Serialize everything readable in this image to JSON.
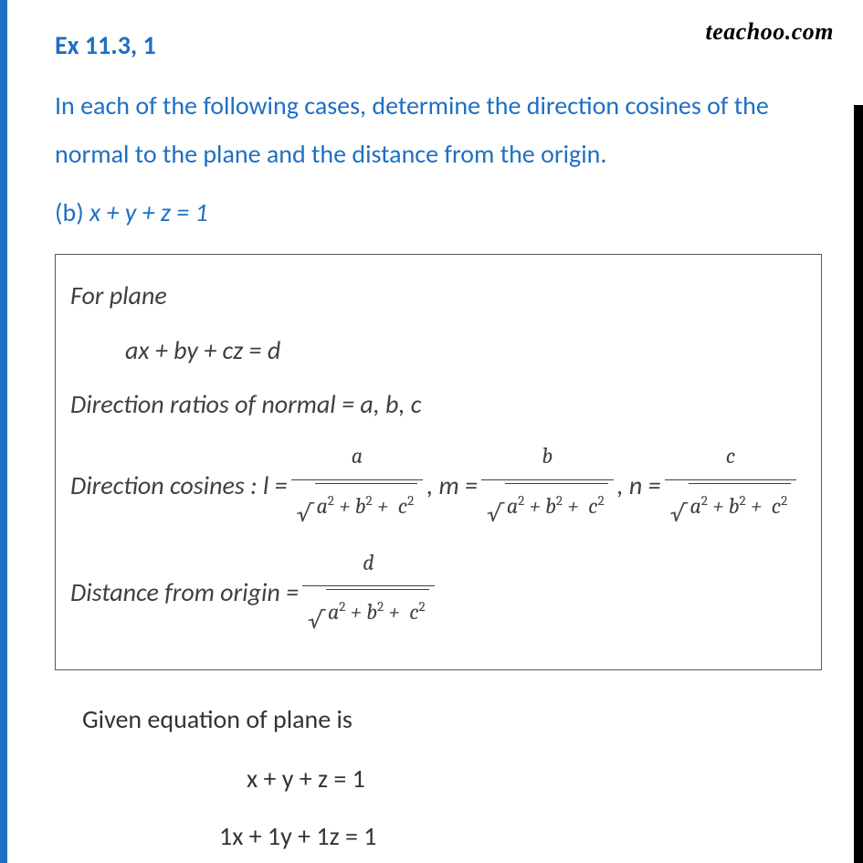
{
  "watermark": "teachoo.com",
  "heading": "Ex 11.3, 1",
  "question": "In each of the following cases, determine the direction cosines of the normal to the plane and the distance from the origin.",
  "part_label": "(b) ",
  "part_equation": "x + y + z = 1",
  "box": {
    "for_plane": "For plane",
    "general_eq": "ax + by + cz = d",
    "dr_label": "Direction ratios of normal = a, b, c",
    "dc_label": "Direction cosines : l = ",
    "m_label": " ,  m = ",
    "n_label": " ,  n = ",
    "a": "a",
    "b": "b",
    "c": "c",
    "d": "d",
    "denom_a": "a",
    "denom_b": "b",
    "denom_c": "c",
    "dist_label": "Distance from origin = "
  },
  "given_label": "Given equation of plane is",
  "given_eq": "x + y + z = 1",
  "expanded_eq": "1x + 1y + 1z = 1",
  "colors": {
    "accent": "#1f6fc2",
    "stripe_dark": "#000000",
    "text_body": "#404040",
    "border": "#5a5a5a",
    "bg": "#ffffff"
  }
}
